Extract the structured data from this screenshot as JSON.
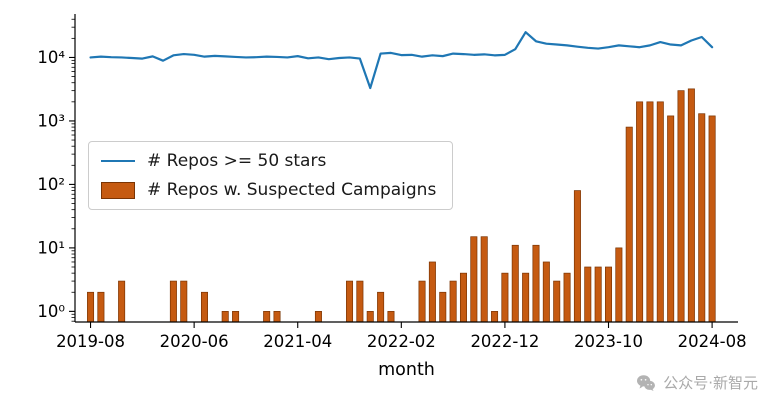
{
  "chart_data": {
    "type": "combo",
    "title": "",
    "xlabel": "month",
    "ylabel": "",
    "y_scale": "log",
    "grid": false,
    "legend_position": "upper-left-inside",
    "ylim": [
      0.68,
      45000
    ],
    "x": [
      "2019-08",
      "2019-09",
      "2019-10",
      "2019-11",
      "2019-12",
      "2020-01",
      "2020-02",
      "2020-03",
      "2020-04",
      "2020-05",
      "2020-06",
      "2020-07",
      "2020-08",
      "2020-09",
      "2020-10",
      "2020-11",
      "2020-12",
      "2021-01",
      "2021-02",
      "2021-03",
      "2021-04",
      "2021-05",
      "2021-06",
      "2021-07",
      "2021-08",
      "2021-09",
      "2021-10",
      "2021-11",
      "2021-12",
      "2022-01",
      "2022-02",
      "2022-03",
      "2022-04",
      "2022-05",
      "2022-06",
      "2022-07",
      "2022-08",
      "2022-09",
      "2022-10",
      "2022-11",
      "2022-12",
      "2023-01",
      "2023-02",
      "2023-03",
      "2023-04",
      "2023-05",
      "2023-06",
      "2023-07",
      "2023-08",
      "2023-09",
      "2023-10",
      "2023-11",
      "2023-12",
      "2024-01",
      "2024-02",
      "2024-03",
      "2024-04",
      "2024-05",
      "2024-06",
      "2024-07",
      "2024-08"
    ],
    "series": [
      {
        "name": "# Repos >= 50 stars",
        "type": "line",
        "color": "#1f77b4",
        "values": [
          10000,
          10300,
          10100,
          10000,
          9800,
          9600,
          10400,
          8900,
          10800,
          11300,
          11000,
          10300,
          10600,
          10400,
          10200,
          10000,
          10100,
          10300,
          10200,
          10000,
          10500,
          9700,
          10000,
          9400,
          9800,
          10000,
          9600,
          3300,
          11500,
          11800,
          10900,
          11000,
          10300,
          10800,
          10500,
          11500,
          11300,
          11000,
          11200,
          10800,
          11000,
          13500,
          25000,
          18000,
          16500,
          16000,
          15500,
          14800,
          14200,
          13800,
          14500,
          15500,
          15000,
          14500,
          15500,
          17500,
          16000,
          15500,
          18500,
          21000,
          14500
        ]
      },
      {
        "name": "# Repos w. Suspected Campaigns",
        "type": "bar",
        "color": "#c55a11",
        "edge_color": "#7a3403",
        "values": [
          2,
          2,
          0,
          3,
          0,
          0,
          0,
          0,
          3,
          3,
          0,
          2,
          0,
          1,
          1,
          0,
          0,
          1,
          1,
          0,
          0,
          0,
          1,
          0,
          0,
          3,
          3,
          1,
          2,
          1,
          0,
          0,
          3,
          6,
          2,
          3,
          4,
          15,
          15,
          1,
          4,
          11,
          4,
          11,
          6,
          3,
          4,
          80,
          5,
          5,
          5,
          10,
          800,
          2000,
          2000,
          2000,
          1200,
          3000,
          3200,
          1300,
          1200
        ]
      }
    ],
    "xticks": {
      "indices": [
        0,
        10,
        20,
        30,
        40,
        50,
        60
      ],
      "labels": [
        "2019-08",
        "2020-06",
        "2021-04",
        "2022-02",
        "2022-12",
        "2023-10",
        "2024-08"
      ]
    },
    "yticks": {
      "values": [
        1,
        10,
        100,
        1000,
        10000
      ],
      "labels": [
        "10⁰",
        "10¹",
        "10²",
        "10³",
        "10⁴"
      ]
    }
  },
  "legend": {
    "items": [
      {
        "label": "# Repos >= 50 stars",
        "swatch": "line",
        "color": "#1f77b4"
      },
      {
        "label": "# Repos w. Suspected Campaigns",
        "swatch": "bar",
        "color": "#c55a11"
      }
    ]
  },
  "watermark": {
    "icon": "wechat-icon",
    "text": "公众号·新智元"
  }
}
